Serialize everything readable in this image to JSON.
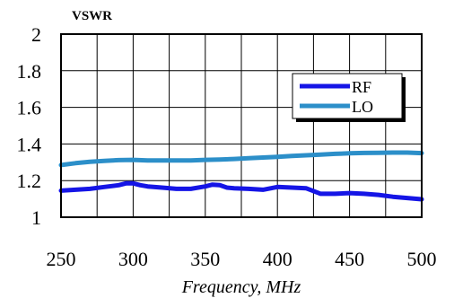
{
  "chart_data": {
    "type": "line",
    "title": "",
    "ylabel": "VSWR",
    "xlabel": "Frequency,  MHz",
    "xlim": [
      250,
      500
    ],
    "ylim": [
      1,
      2
    ],
    "x_ticks": [
      "250",
      "300",
      "350",
      "400",
      "450",
      "500"
    ],
    "y_ticks": [
      "1",
      "1.2",
      "1.4",
      "1.6",
      "1.8",
      "2"
    ],
    "grid": true,
    "legend_position": "top-right",
    "series": [
      {
        "name": "RF",
        "color": "#1515e6",
        "x": [
          250,
          260,
          270,
          280,
          290,
          295,
          300,
          305,
          310,
          320,
          330,
          340,
          350,
          355,
          360,
          365,
          370,
          380,
          390,
          400,
          410,
          420,
          430,
          440,
          450,
          460,
          470,
          480,
          490,
          500
        ],
        "y": [
          1.145,
          1.15,
          1.155,
          1.165,
          1.175,
          1.185,
          1.185,
          1.175,
          1.168,
          1.162,
          1.155,
          1.155,
          1.168,
          1.178,
          1.175,
          1.162,
          1.158,
          1.155,
          1.15,
          1.165,
          1.162,
          1.158,
          1.128,
          1.128,
          1.132,
          1.128,
          1.122,
          1.112,
          1.105,
          1.098
        ]
      },
      {
        "name": "LO",
        "color": "#2c8fc9",
        "x": [
          250,
          260,
          270,
          280,
          290,
          300,
          310,
          320,
          330,
          340,
          350,
          360,
          370,
          380,
          390,
          400,
          410,
          420,
          430,
          440,
          450,
          460,
          470,
          480,
          490,
          500
        ],
        "y": [
          1.285,
          1.295,
          1.303,
          1.308,
          1.312,
          1.313,
          1.31,
          1.31,
          1.31,
          1.31,
          1.313,
          1.315,
          1.318,
          1.322,
          1.326,
          1.33,
          1.335,
          1.338,
          1.342,
          1.346,
          1.349,
          1.351,
          1.352,
          1.353,
          1.353,
          1.35
        ]
      }
    ]
  }
}
